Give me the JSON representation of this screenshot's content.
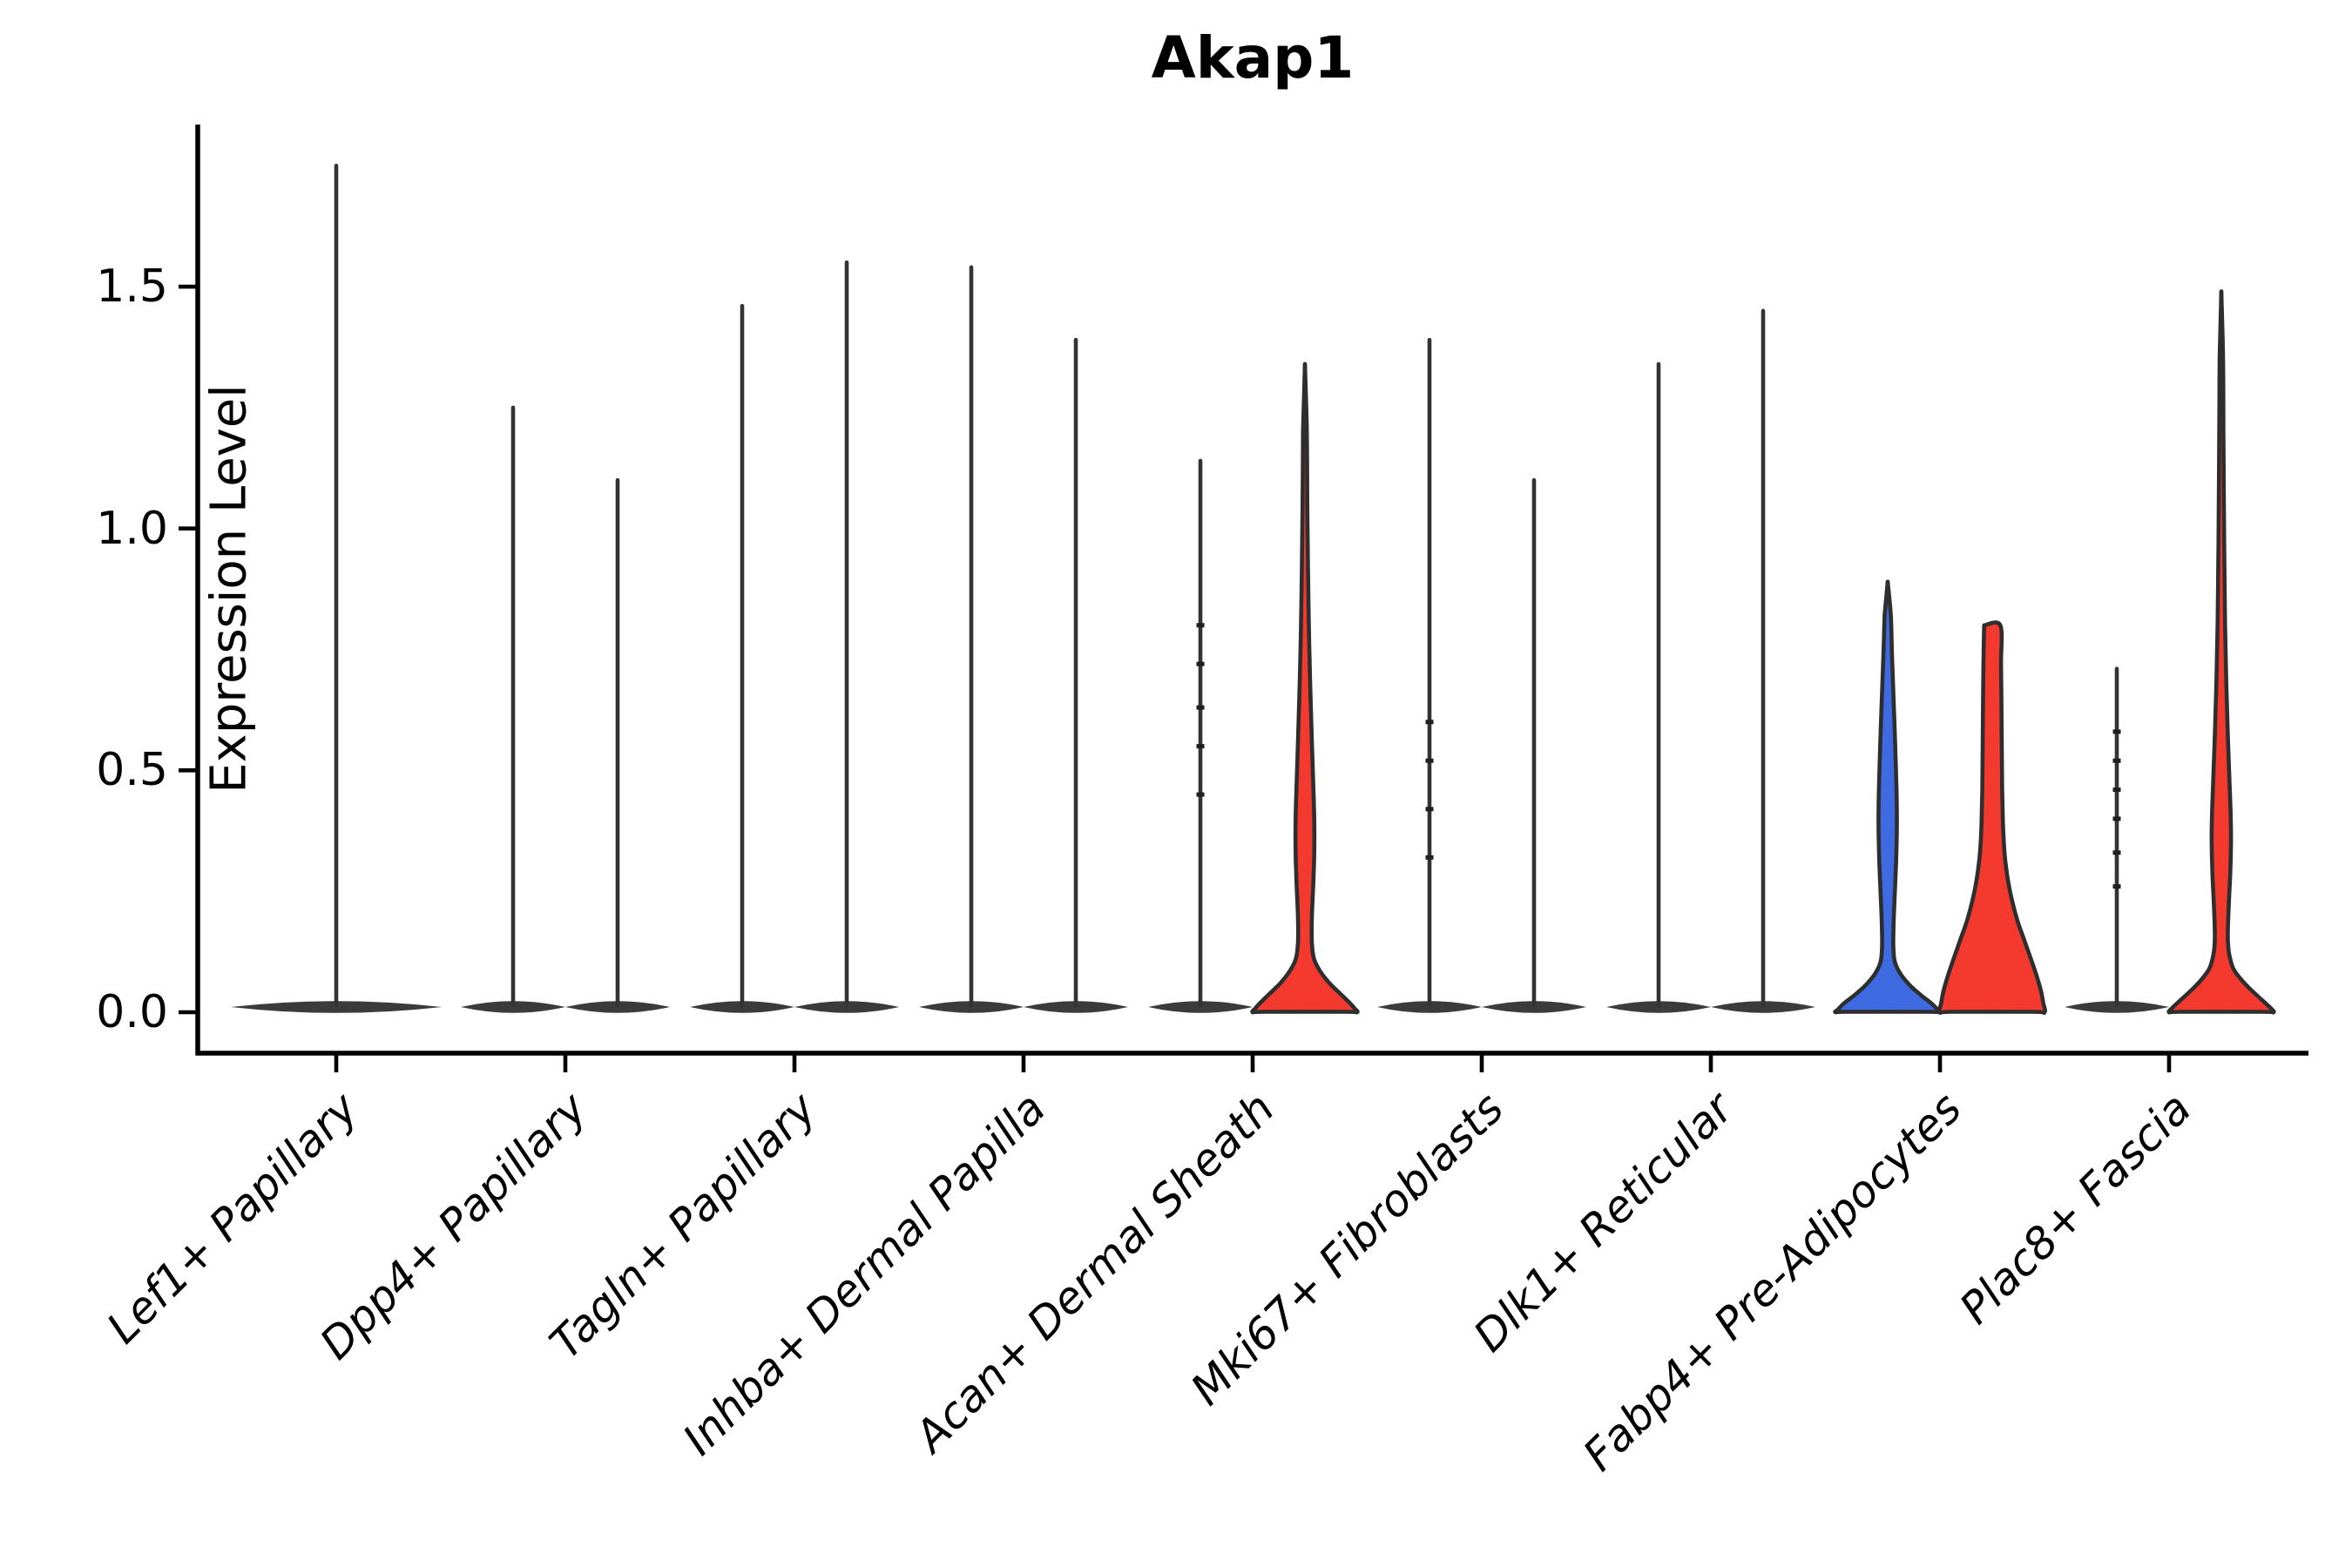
{
  "title": "Akap1",
  "ylabel": "Expression Level",
  "colors": {
    "background": "#ffffff",
    "red": "#f43a2e",
    "blue": "#3e6be1",
    "outline": "#2e2e2e",
    "spike": "#333333",
    "pancake": "#3b3b3b",
    "axis": "#000000"
  },
  "chart_data": {
    "type": "violin",
    "title": "Akap1",
    "ylabel": "Expression Level",
    "xlabel": "",
    "ylim": [
      -0.085,
      1.84
    ],
    "yticks": [
      0,
      0.5,
      1.0,
      1.5
    ],
    "ytick_labels": [
      "0.0",
      "0.5",
      "1.0",
      "1.5"
    ],
    "legend": "none",
    "grid": false,
    "categories": [
      "Lef1+ Papillary",
      "Dpp4+ Papillary",
      "Tagln+ Papillary",
      "Inhba+ Dermal Papilla",
      "Acan+ Dermal Sheath",
      "Mki67+ Fibroblasts",
      "Dlk1+ Reticular",
      "Fabp4+ Pre-Adipocytes",
      "Plac8+ Fascia"
    ],
    "groups": [
      {
        "category": "Lef1+ Papillary",
        "violins": [
          {
            "pos": "center",
            "width_factor": 2.02,
            "fill": "none",
            "max": 1.75
          }
        ]
      },
      {
        "category": "Dpp4+ Papillary",
        "violins": [
          {
            "pos": "left",
            "fill": "none",
            "max": 1.25
          },
          {
            "pos": "right",
            "fill": "none",
            "max": 1.1
          }
        ]
      },
      {
        "category": "Tagln+ Papillary",
        "violins": [
          {
            "pos": "left",
            "fill": "none",
            "max": 1.46
          },
          {
            "pos": "right",
            "fill": "none",
            "max": 1.55
          }
        ]
      },
      {
        "category": "Inhba+ Dermal Papilla",
        "violins": [
          {
            "pos": "left",
            "fill": "none",
            "max": 1.54
          },
          {
            "pos": "right",
            "fill": "none",
            "max": 1.39
          }
        ]
      },
      {
        "category": "Acan+ Dermal Sheath",
        "violins": [
          {
            "pos": "left",
            "fill": "none",
            "max": 1.14,
            "marks": [
              0.45,
              0.55,
              0.63,
              0.72,
              0.8
            ]
          },
          {
            "pos": "right",
            "fill": "red",
            "max": 1.34,
            "profile": [
              [
                1.34,
                0.03
              ],
              [
                1.2,
                0.036
              ],
              [
                1.05,
                0.045
              ],
              [
                0.92,
                0.058
              ],
              [
                0.8,
                0.075
              ],
              [
                0.68,
                0.1
              ],
              [
                0.57,
                0.13
              ],
              [
                0.47,
                0.16
              ],
              [
                0.4,
                0.178
              ],
              [
                0.34,
                0.18
              ],
              [
                0.28,
                0.165
              ],
              [
                0.23,
                0.145
              ],
              [
                0.18,
                0.13
              ],
              [
                0.14,
                0.135
              ],
              [
                0.11,
                0.175
              ],
              [
                0.085,
                0.29
              ],
              [
                0.06,
                0.47
              ],
              [
                0.04,
                0.66
              ],
              [
                0.02,
                0.85
              ],
              [
                0.008,
                0.95
              ],
              [
                0,
                1.0
              ]
            ]
          }
        ]
      },
      {
        "category": "Mki67+ Fibroblasts",
        "violins": [
          {
            "pos": "left",
            "fill": "none",
            "max": 1.39,
            "marks": [
              0.32,
              0.42,
              0.52,
              0.6
            ]
          },
          {
            "pos": "right",
            "fill": "none",
            "max": 1.1
          }
        ]
      },
      {
        "category": "Dlk1+ Reticular",
        "violins": [
          {
            "pos": "left",
            "fill": "none",
            "max": 1.34
          },
          {
            "pos": "right",
            "fill": "none",
            "max": 1.45
          }
        ]
      },
      {
        "category": "Fabp4+ Pre-Adipocytes",
        "violins": [
          {
            "pos": "left",
            "fill": "blue",
            "max": 0.89,
            "profile": [
              [
                0.89,
                0.045
              ],
              [
                0.82,
                0.06
              ],
              [
                0.74,
                0.082
              ],
              [
                0.66,
                0.108
              ],
              [
                0.58,
                0.135
              ],
              [
                0.5,
                0.158
              ],
              [
                0.44,
                0.172
              ],
              [
                0.38,
                0.175
              ],
              [
                0.32,
                0.163
              ],
              [
                0.26,
                0.142
              ],
              [
                0.21,
                0.122
              ],
              [
                0.17,
                0.11
              ],
              [
                0.135,
                0.108
              ],
              [
                0.105,
                0.135
              ],
              [
                0.08,
                0.24
              ],
              [
                0.055,
                0.43
              ],
              [
                0.035,
                0.64
              ],
              [
                0.018,
                0.84
              ],
              [
                0.006,
                0.95
              ],
              [
                0,
                1.0
              ]
            ]
          },
          {
            "pos": "right",
            "fill": "red",
            "max": 0.8,
            "flat_top": true,
            "profile": [
              [
                0.8,
                0.155
              ],
              [
                0.72,
                0.168
              ],
              [
                0.63,
                0.177
              ],
              [
                0.54,
                0.183
              ],
              [
                0.46,
                0.19
              ],
              [
                0.39,
                0.205
              ],
              [
                0.33,
                0.235
              ],
              [
                0.28,
                0.29
              ],
              [
                0.235,
                0.37
              ],
              [
                0.19,
                0.48
              ],
              [
                0.15,
                0.61
              ],
              [
                0.11,
                0.74
              ],
              [
                0.075,
                0.85
              ],
              [
                0.045,
                0.93
              ],
              [
                0.02,
                0.975
              ],
              [
                0,
                1.0
              ]
            ]
          }
        ]
      },
      {
        "category": "Plac8+ Fascia",
        "violins": [
          {
            "pos": "left",
            "fill": "none",
            "max": 0.71,
            "marks": [
              0.26,
              0.33,
              0.4,
              0.46,
              0.52,
              0.58
            ]
          },
          {
            "pos": "right",
            "fill": "red",
            "max": 1.49,
            "profile": [
              [
                1.49,
                0.028
              ],
              [
                1.35,
                0.033
              ],
              [
                1.2,
                0.04
              ],
              [
                1.06,
                0.048
              ],
              [
                0.93,
                0.058
              ],
              [
                0.8,
                0.072
              ],
              [
                0.68,
                0.095
              ],
              [
                0.57,
                0.125
              ],
              [
                0.48,
                0.155
              ],
              [
                0.41,
                0.178
              ],
              [
                0.35,
                0.185
              ],
              [
                0.29,
                0.172
              ],
              [
                0.24,
                0.15
              ],
              [
                0.19,
                0.13
              ],
              [
                0.15,
                0.125
              ],
              [
                0.12,
                0.15
              ],
              [
                0.09,
                0.23
              ],
              [
                0.065,
                0.4
              ],
              [
                0.045,
                0.58
              ],
              [
                0.025,
                0.78
              ],
              [
                0.01,
                0.93
              ],
              [
                0,
                1.0
              ]
            ]
          }
        ]
      }
    ]
  }
}
